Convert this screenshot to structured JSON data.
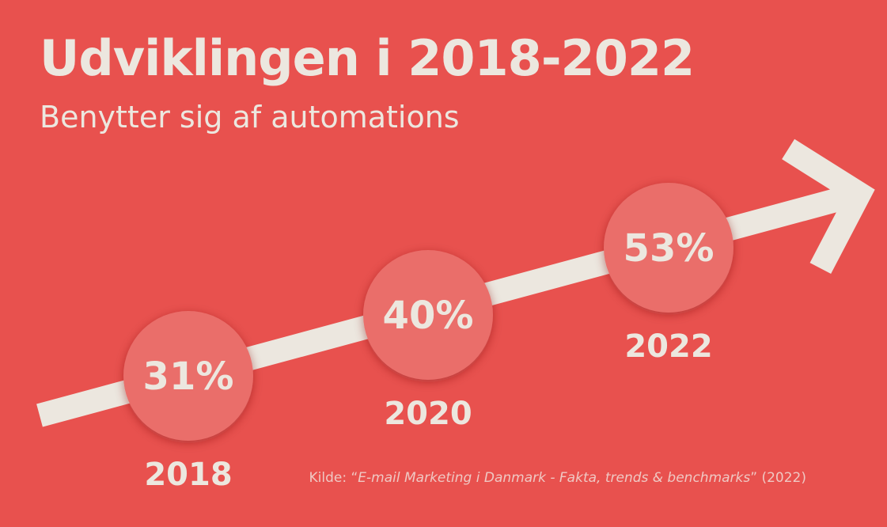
{
  "chart_data": {
    "type": "line",
    "title": "Udviklingen i 2018-2022",
    "subtitle": "Benytter sig af automations",
    "categories": [
      "2018",
      "2020",
      "2022"
    ],
    "values": [
      31,
      40,
      53
    ],
    "value_labels": [
      "31%",
      "40%",
      "53%"
    ],
    "unit": "%",
    "source": {
      "prefix": "Kilde: “",
      "title": "E-mail Marketing i Danmark - Fakta, trends & benchmarks",
      "suffix": "” (2022)"
    }
  },
  "colors": {
    "background": "#e8514e",
    "bubble": "#ea6e6b",
    "arrow": "#ece7df",
    "text": "#ece7df",
    "source_text": "#efc8c3"
  }
}
